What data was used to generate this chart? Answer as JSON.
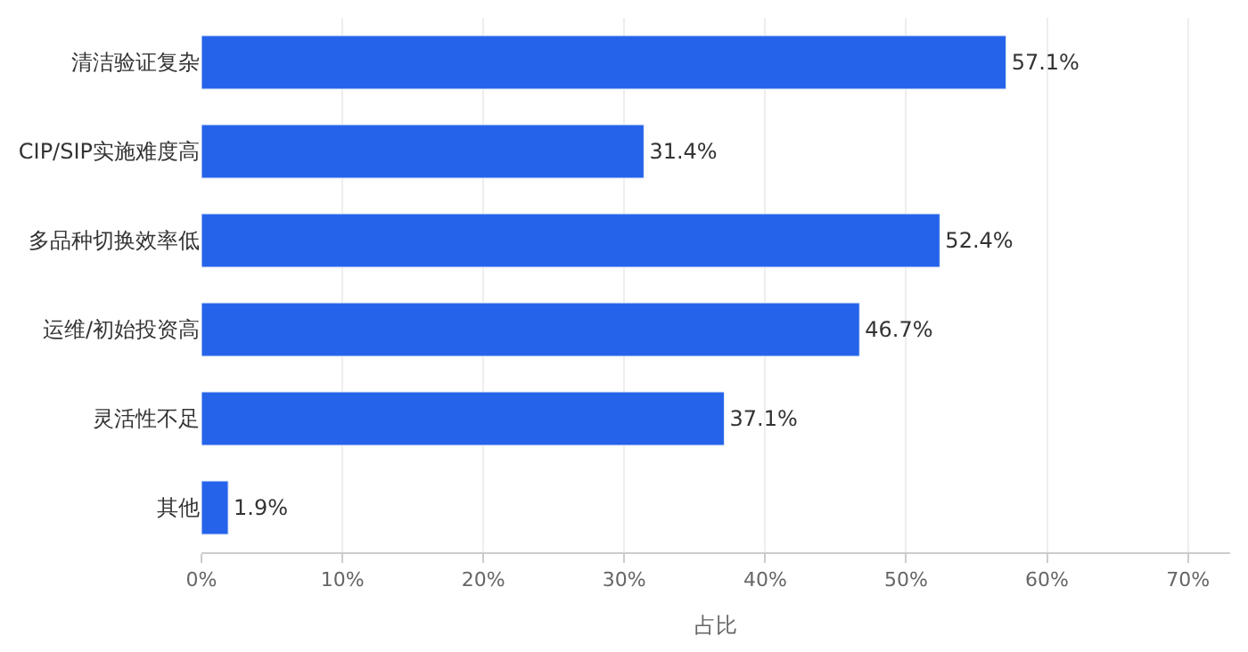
{
  "chart_data": {
    "type": "bar",
    "orientation": "horizontal",
    "categories": [
      "清洁验证复杂",
      "CIP/SIP实施难度高",
      "多品种切换效率低",
      "运维/初始投资高",
      "灵活性不足",
      "其他"
    ],
    "values": [
      57.1,
      31.4,
      52.4,
      46.7,
      37.1,
      1.9
    ],
    "value_labels": [
      "57.1%",
      "31.4%",
      "52.4%",
      "46.7%",
      "37.1%",
      "1.9%"
    ],
    "color": "#2563eb",
    "xlabel": "占比",
    "xlim": [
      0,
      73
    ],
    "xticks": [
      {
        "value": 0,
        "label": "0%"
      },
      {
        "value": 10,
        "label": "10%"
      },
      {
        "value": 20,
        "label": "20%"
      },
      {
        "value": 30,
        "label": "30%"
      },
      {
        "value": 40,
        "label": "40%"
      },
      {
        "value": 50,
        "label": "50%"
      },
      {
        "value": 60,
        "label": "60%"
      },
      {
        "value": 70,
        "label": "70%"
      }
    ],
    "grid": "x"
  }
}
